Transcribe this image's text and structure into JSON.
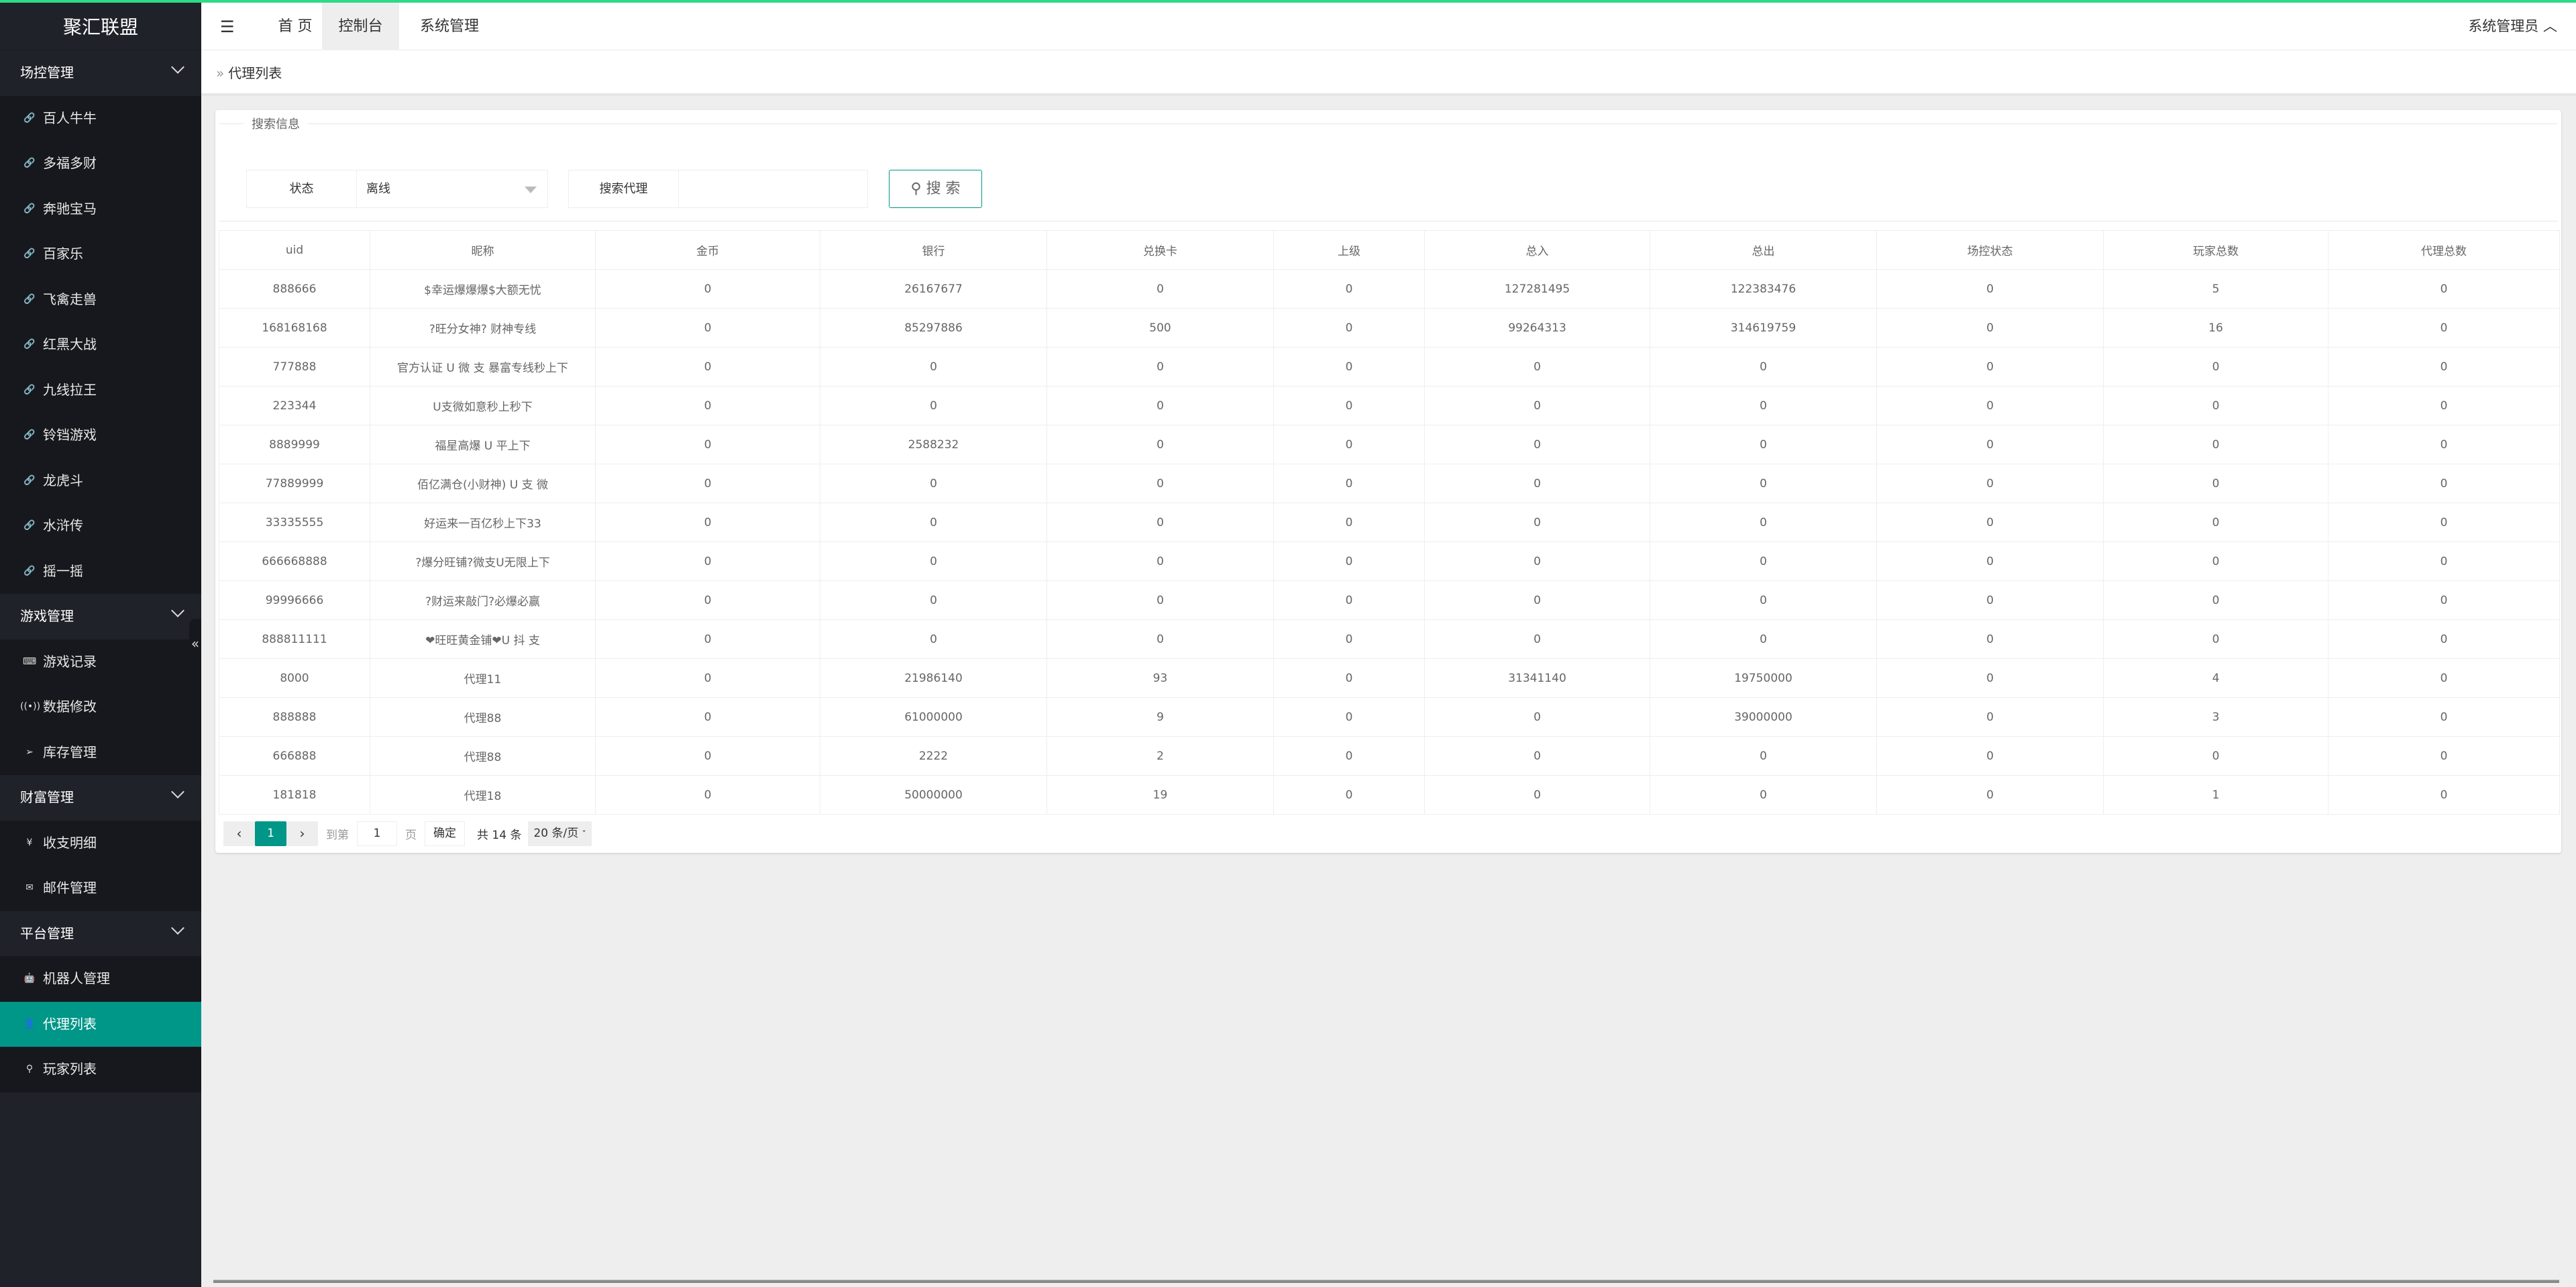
{
  "app": {
    "title": "聚汇联盟",
    "accent": "#009688",
    "topline_color": "#2ddb86"
  },
  "topbar": {
    "tabs": [
      {
        "label": "首 页",
        "active": false
      },
      {
        "label": "控制台",
        "active": true
      },
      {
        "label": "系统管理",
        "active": false
      }
    ],
    "user": "系统管理员"
  },
  "breadcrumb": {
    "current": "代理列表"
  },
  "sidebar": {
    "sections": [
      {
        "label": "场控管理",
        "items": [
          {
            "label": "百人牛牛",
            "icon": "link-icon"
          },
          {
            "label": "多福多财",
            "icon": "link-icon"
          },
          {
            "label": "奔驰宝马",
            "icon": "link-icon"
          },
          {
            "label": "百家乐",
            "icon": "link-icon"
          },
          {
            "label": "飞禽走兽",
            "icon": "link-icon"
          },
          {
            "label": "红黑大战",
            "icon": "link-icon"
          },
          {
            "label": "九线拉王",
            "icon": "link-icon"
          },
          {
            "label": "铃铛游戏",
            "icon": "link-icon"
          },
          {
            "label": "龙虎斗",
            "icon": "link-icon"
          },
          {
            "label": "水浒传",
            "icon": "link-icon"
          },
          {
            "label": "摇一摇",
            "icon": "link-icon"
          }
        ]
      },
      {
        "label": "游戏管理",
        "items": [
          {
            "label": "游戏记录",
            "icon": "keyboard-icon"
          },
          {
            "label": "数据修改",
            "icon": "broadcast-icon"
          },
          {
            "label": "库存管理",
            "icon": "send-icon"
          }
        ]
      },
      {
        "label": "财富管理",
        "items": [
          {
            "label": "收支明细",
            "icon": "wallet-icon"
          },
          {
            "label": "邮件管理",
            "icon": "mail-icon"
          }
        ]
      },
      {
        "label": "平台管理",
        "items": [
          {
            "label": "机器人管理",
            "icon": "android-icon"
          },
          {
            "label": "代理列表",
            "icon": "user-icon",
            "active": true
          },
          {
            "label": "玩家列表",
            "icon": "user-outline-icon"
          }
        ]
      }
    ]
  },
  "search": {
    "legend": "搜索信息",
    "status_label": "状态",
    "status_value": "离线",
    "agent_label": "搜索代理",
    "agent_value": "",
    "button": "搜 索"
  },
  "table": {
    "columns": [
      "uid",
      "昵称",
      "金币",
      "银行",
      "兑换卡",
      "上级",
      "总入",
      "总出",
      "场控状态",
      "玩家总数",
      "代理总数"
    ],
    "rows": [
      [
        "888666",
        "$幸运爆爆爆$大额无忧",
        "0",
        "26167677",
        "0",
        "0",
        "127281495",
        "122383476",
        "0",
        "5",
        "0"
      ],
      [
        "168168168",
        "?旺分女神? 财神专线",
        "0",
        "85297886",
        "500",
        "0",
        "99264313",
        "314619759",
        "0",
        "16",
        "0"
      ],
      [
        "777888",
        "官方认证 U 微 支 暴富专线秒上下",
        "0",
        "0",
        "0",
        "0",
        "0",
        "0",
        "0",
        "0",
        "0"
      ],
      [
        "223344",
        "U支微如意秒上秒下",
        "0",
        "0",
        "0",
        "0",
        "0",
        "0",
        "0",
        "0",
        "0"
      ],
      [
        "8889999",
        "福星高爆 U 平上下",
        "0",
        "2588232",
        "0",
        "0",
        "0",
        "0",
        "0",
        "0",
        "0"
      ],
      [
        "77889999",
        "佰亿满仓(小财神) U 支 微",
        "0",
        "0",
        "0",
        "0",
        "0",
        "0",
        "0",
        "0",
        "0"
      ],
      [
        "33335555",
        "好运来一百亿秒上下33",
        "0",
        "0",
        "0",
        "0",
        "0",
        "0",
        "0",
        "0",
        "0"
      ],
      [
        "666668888",
        "?爆分旺铺?微支U无限上下",
        "0",
        "0",
        "0",
        "0",
        "0",
        "0",
        "0",
        "0",
        "0"
      ],
      [
        "99996666",
        "?财运来敲门?必爆必赢",
        "0",
        "0",
        "0",
        "0",
        "0",
        "0",
        "0",
        "0",
        "0"
      ],
      [
        "888811111",
        "❤旺旺黄金铺❤U 抖 支",
        "0",
        "0",
        "0",
        "0",
        "0",
        "0",
        "0",
        "0",
        "0"
      ],
      [
        "8000",
        "代理11",
        "0",
        "21986140",
        "93",
        "0",
        "31341140",
        "19750000",
        "0",
        "4",
        "0"
      ],
      [
        "888888",
        "代理88",
        "0",
        "61000000",
        "9",
        "0",
        "0",
        "39000000",
        "0",
        "3",
        "0"
      ],
      [
        "666888",
        "代理88",
        "0",
        "2222",
        "2",
        "0",
        "0",
        "0",
        "0",
        "0",
        "0"
      ],
      [
        "181818",
        "代理18",
        "0",
        "50000000",
        "19",
        "0",
        "0",
        "0",
        "0",
        "1",
        "0"
      ]
    ]
  },
  "pagination": {
    "current": "1",
    "goto_label": "到第",
    "goto_value": "1",
    "page_unit": "页",
    "confirm": "确定",
    "total": "共 14 条",
    "page_size": "20 条/页"
  }
}
